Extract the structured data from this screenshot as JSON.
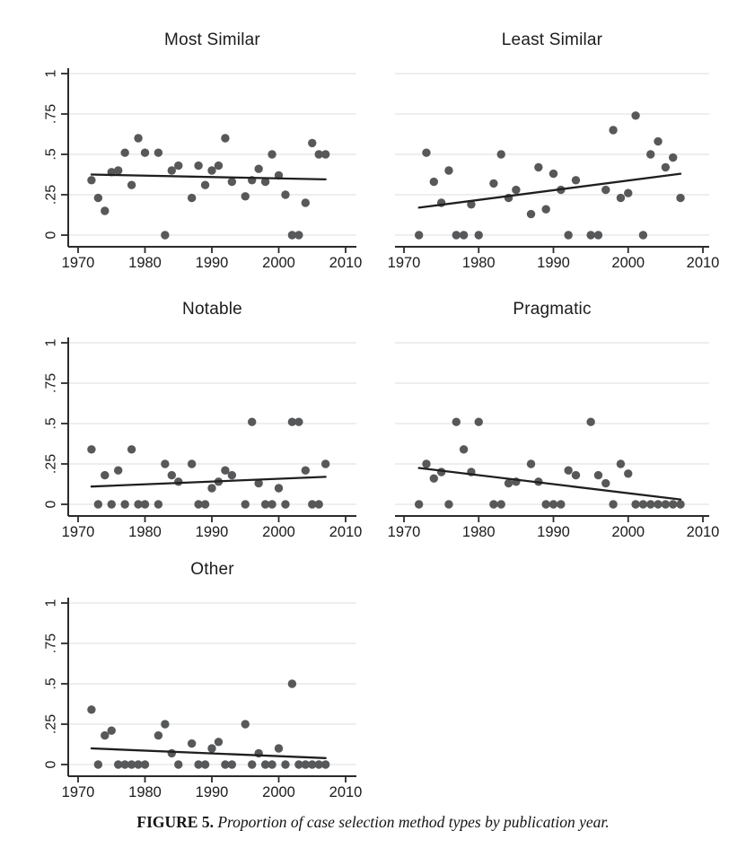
{
  "figure": {
    "caption_label": "FIGURE 5.",
    "caption_text": "Proportion of case selection method types by publication year."
  },
  "axes": {
    "x_ticks": [
      "1970",
      "1980",
      "1990",
      "2000",
      "2010"
    ],
    "x_tick_values": [
      1970,
      1980,
      1990,
      2000,
      2010
    ],
    "y_ticks": [
      "0",
      ".25",
      ".5",
      ".75",
      "1"
    ],
    "y_tick_values": [
      0,
      0.25,
      0.5,
      0.75,
      1
    ],
    "ylim": [
      0,
      1
    ],
    "xlim": [
      1969,
      2011
    ],
    "grid": "horizontal-only",
    "y_label_rotation": "vertical"
  },
  "colors": {
    "background": "#ffffff",
    "dot": "#57585a",
    "trend_line": "#1f1f1f",
    "gridline": "#e8e8e8",
    "axis": "#2b2b2b",
    "text": "#1c1c1c"
  },
  "chart_data": [
    {
      "type": "scatter",
      "title": "Most Similar",
      "position": "row1-left",
      "y_axis_labels": true,
      "points": [
        [
          1972,
          0.34
        ],
        [
          1973,
          0.23
        ],
        [
          1974,
          0.15
        ],
        [
          1975,
          0.39
        ],
        [
          1976,
          0.4
        ],
        [
          1977,
          0.51
        ],
        [
          1978,
          0.31
        ],
        [
          1979,
          0.6
        ],
        [
          1980,
          0.51
        ],
        [
          1982,
          0.51
        ],
        [
          1983,
          0.0
        ],
        [
          1984,
          0.4
        ],
        [
          1985,
          0.43
        ],
        [
          1987,
          0.23
        ],
        [
          1988,
          0.43
        ],
        [
          1989,
          0.31
        ],
        [
          1990,
          0.4
        ],
        [
          1991,
          0.43
        ],
        [
          1992,
          0.6
        ],
        [
          1993,
          0.33
        ],
        [
          1995,
          0.24
        ],
        [
          1996,
          0.34
        ],
        [
          1997,
          0.41
        ],
        [
          1998,
          0.33
        ],
        [
          1999,
          0.5
        ],
        [
          2000,
          0.37
        ],
        [
          2001,
          0.25
        ],
        [
          2002,
          0.0
        ],
        [
          2003,
          0.0
        ],
        [
          2004,
          0.2
        ],
        [
          2005,
          0.57
        ],
        [
          2006,
          0.5
        ],
        [
          2007,
          0.5
        ]
      ],
      "trend_line": {
        "x": [
          1972,
          2007
        ],
        "y": [
          0.375,
          0.345
        ]
      }
    },
    {
      "type": "scatter",
      "title": "Least Similar",
      "position": "row1-right",
      "y_axis_labels": false,
      "points": [
        [
          1972,
          0.0
        ],
        [
          1973,
          0.51
        ],
        [
          1974,
          0.33
        ],
        [
          1975,
          0.2
        ],
        [
          1976,
          0.4
        ],
        [
          1977,
          0.0
        ],
        [
          1978,
          0.0
        ],
        [
          1979,
          0.19
        ],
        [
          1980,
          0.0
        ],
        [
          1982,
          0.32
        ],
        [
          1983,
          0.5
        ],
        [
          1984,
          0.23
        ],
        [
          1985,
          0.28
        ],
        [
          1987,
          0.13
        ],
        [
          1988,
          0.42
        ],
        [
          1989,
          0.16
        ],
        [
          1990,
          0.38
        ],
        [
          1991,
          0.28
        ],
        [
          1992,
          0.0
        ],
        [
          1993,
          0.34
        ],
        [
          1995,
          0.0
        ],
        [
          1996,
          0.0
        ],
        [
          1997,
          0.28
        ],
        [
          1998,
          0.65
        ],
        [
          1999,
          0.23
        ],
        [
          2000,
          0.26
        ],
        [
          2001,
          0.74
        ],
        [
          2002,
          0.0
        ],
        [
          2003,
          0.5
        ],
        [
          2004,
          0.58
        ],
        [
          2005,
          0.42
        ],
        [
          2006,
          0.48
        ],
        [
          2007,
          0.23
        ]
      ],
      "trend_line": {
        "x": [
          1972,
          2007
        ],
        "y": [
          0.17,
          0.38
        ]
      }
    },
    {
      "type": "scatter",
      "title": "Notable",
      "position": "row2-left",
      "y_axis_labels": true,
      "points": [
        [
          1972,
          0.34
        ],
        [
          1973,
          0.0
        ],
        [
          1974,
          0.18
        ],
        [
          1975,
          0.0
        ],
        [
          1976,
          0.21
        ],
        [
          1977,
          0.0
        ],
        [
          1978,
          0.34
        ],
        [
          1979,
          0.0
        ],
        [
          1980,
          0.0
        ],
        [
          1982,
          0.0
        ],
        [
          1983,
          0.25
        ],
        [
          1984,
          0.18
        ],
        [
          1985,
          0.14
        ],
        [
          1987,
          0.25
        ],
        [
          1988,
          0.0
        ],
        [
          1989,
          0.0
        ],
        [
          1990,
          0.1
        ],
        [
          1991,
          0.14
        ],
        [
          1992,
          0.21
        ],
        [
          1993,
          0.18
        ],
        [
          1995,
          0.0
        ],
        [
          1996,
          0.51
        ],
        [
          1997,
          0.13
        ],
        [
          1998,
          0.0
        ],
        [
          1999,
          0.0
        ],
        [
          2000,
          0.1
        ],
        [
          2001,
          0.0
        ],
        [
          2002,
          0.51
        ],
        [
          2003,
          0.51
        ],
        [
          2004,
          0.21
        ],
        [
          2005,
          0.0
        ],
        [
          2006,
          0.0
        ],
        [
          2007,
          0.25
        ]
      ],
      "trend_line": {
        "x": [
          1972,
          2007
        ],
        "y": [
          0.11,
          0.17
        ]
      }
    },
    {
      "type": "scatter",
      "title": "Pragmatic",
      "position": "row2-right",
      "y_axis_labels": false,
      "points": [
        [
          1972,
          0.0
        ],
        [
          1973,
          0.25
        ],
        [
          1974,
          0.16
        ],
        [
          1975,
          0.2
        ],
        [
          1976,
          0.0
        ],
        [
          1977,
          0.51
        ],
        [
          1978,
          0.34
        ],
        [
          1979,
          0.2
        ],
        [
          1980,
          0.51
        ],
        [
          1982,
          0.0
        ],
        [
          1983,
          0.0
        ],
        [
          1984,
          0.13
        ],
        [
          1985,
          0.14
        ],
        [
          1987,
          0.25
        ],
        [
          1988,
          0.14
        ],
        [
          1989,
          0.0
        ],
        [
          1990,
          0.0
        ],
        [
          1991,
          0.0
        ],
        [
          1992,
          0.21
        ],
        [
          1993,
          0.18
        ],
        [
          1995,
          0.51
        ],
        [
          1996,
          0.18
        ],
        [
          1997,
          0.13
        ],
        [
          1998,
          0.0
        ],
        [
          1999,
          0.25
        ],
        [
          2000,
          0.19
        ],
        [
          2001,
          0.0
        ],
        [
          2002,
          0.0
        ],
        [
          2003,
          0.0
        ],
        [
          2004,
          0.0
        ],
        [
          2005,
          0.0
        ],
        [
          2006,
          0.0
        ],
        [
          2007,
          0.0
        ]
      ],
      "trend_line": {
        "x": [
          1972,
          2007
        ],
        "y": [
          0.225,
          0.03
        ]
      }
    },
    {
      "type": "scatter",
      "title": "Other",
      "position": "row3-left",
      "y_axis_labels": true,
      "points": [
        [
          1972,
          0.34
        ],
        [
          1973,
          0.0
        ],
        [
          1974,
          0.18
        ],
        [
          1975,
          0.21
        ],
        [
          1976,
          0.0
        ],
        [
          1977,
          0.0
        ],
        [
          1978,
          0.0
        ],
        [
          1979,
          0.0
        ],
        [
          1980,
          0.0
        ],
        [
          1982,
          0.18
        ],
        [
          1983,
          0.25
        ],
        [
          1984,
          0.07
        ],
        [
          1985,
          0.0
        ],
        [
          1987,
          0.13
        ],
        [
          1988,
          0.0
        ],
        [
          1989,
          0.0
        ],
        [
          1990,
          0.1
        ],
        [
          1991,
          0.14
        ],
        [
          1992,
          0.0
        ],
        [
          1993,
          0.0
        ],
        [
          1995,
          0.25
        ],
        [
          1996,
          0.0
        ],
        [
          1997,
          0.07
        ],
        [
          1998,
          0.0
        ],
        [
          1999,
          0.0
        ],
        [
          2000,
          0.1
        ],
        [
          2001,
          0.0
        ],
        [
          2002,
          0.5
        ],
        [
          2003,
          0.0
        ],
        [
          2004,
          0.0
        ],
        [
          2005,
          0.0
        ],
        [
          2006,
          0.0
        ],
        [
          2007,
          0.0
        ]
      ],
      "trend_line": {
        "x": [
          1972,
          2007
        ],
        "y": [
          0.1,
          0.04
        ]
      }
    }
  ]
}
